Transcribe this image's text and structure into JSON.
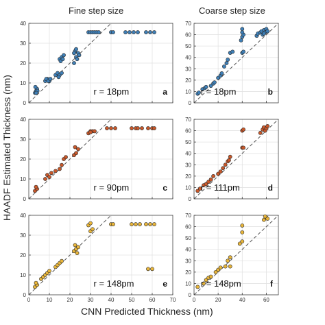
{
  "figure": {
    "col_titles": [
      "Fine step size",
      "Coarse step size"
    ],
    "ylabel": "HAADF Estimated Thickness (nm)",
    "xlabel": "CNN Predicted Thickness (nm)"
  },
  "chart_data": [
    {
      "type": "scatter",
      "panel": "a",
      "annotation": "r = 18pm",
      "xlim": [
        0,
        70
      ],
      "ylim": [
        0,
        40
      ],
      "xticks": [
        0,
        10,
        20,
        30,
        40,
        50,
        60,
        70
      ],
      "yticks": [
        0,
        10,
        20,
        30,
        40
      ],
      "xtick_labels": [],
      "grid": true,
      "reference_line": "y = x",
      "marker_color": "#3f7fb6",
      "points": [
        [
          3,
          5
        ],
        [
          3.5,
          6
        ],
        [
          4,
          7
        ],
        [
          3.2,
          8
        ],
        [
          4.2,
          6
        ],
        [
          3.6,
          5
        ],
        [
          8,
          11
        ],
        [
          9,
          12
        ],
        [
          10,
          11
        ],
        [
          8.5,
          12
        ],
        [
          9.5,
          11
        ],
        [
          10.5,
          12
        ],
        [
          13,
          14
        ],
        [
          14,
          15
        ],
        [
          15,
          14
        ],
        [
          16,
          15
        ],
        [
          14.5,
          13
        ],
        [
          15,
          22
        ],
        [
          16,
          23
        ],
        [
          17,
          24
        ],
        [
          15.5,
          21
        ],
        [
          16.5,
          22
        ],
        [
          22,
          20
        ],
        [
          23,
          23
        ],
        [
          24,
          25
        ],
        [
          22.5,
          26
        ],
        [
          23.5,
          22
        ],
        [
          24.5,
          24
        ],
        [
          22,
          25
        ],
        [
          23,
          27
        ],
        [
          29,
          35.5
        ],
        [
          30,
          35.5
        ],
        [
          31,
          35.5
        ],
        [
          32,
          35.5
        ],
        [
          33,
          35.5
        ],
        [
          34,
          35.5
        ],
        [
          40,
          35.5
        ],
        [
          41,
          35.5
        ],
        [
          47,
          35.5
        ],
        [
          49,
          35.5
        ],
        [
          51,
          35.5
        ],
        [
          53,
          35.5
        ],
        [
          57,
          35.5
        ],
        [
          59,
          35.5
        ],
        [
          61,
          35.5
        ]
      ]
    },
    {
      "type": "scatter",
      "panel": "b",
      "annotation": "r = 18pm",
      "xlim": [
        0,
        70
      ],
      "ylim": [
        0,
        70
      ],
      "xticks": [
        0,
        20,
        40,
        60
      ],
      "yticks": [
        0,
        10,
        20,
        30,
        40,
        50,
        60,
        70
      ],
      "xtick_labels": [],
      "grid": true,
      "reference_line": "y = x",
      "marker_color": "#3f7fb6",
      "points": [
        [
          3,
          8
        ],
        [
          4,
          9
        ],
        [
          7,
          12
        ],
        [
          9,
          13
        ],
        [
          10,
          14
        ],
        [
          14,
          15
        ],
        [
          16,
          17
        ],
        [
          17,
          18
        ],
        [
          20,
          22
        ],
        [
          22,
          24
        ],
        [
          23,
          26
        ],
        [
          25,
          32
        ],
        [
          27,
          35
        ],
        [
          28,
          38
        ],
        [
          30,
          44
        ],
        [
          32,
          45
        ],
        [
          40,
          44
        ],
        [
          41,
          45
        ],
        [
          39,
          55
        ],
        [
          40,
          58
        ],
        [
          41,
          60
        ],
        [
          40,
          62
        ],
        [
          40,
          65
        ],
        [
          52,
          59
        ],
        [
          53,
          61
        ],
        [
          55,
          62
        ],
        [
          56,
          63
        ],
        [
          57,
          60
        ],
        [
          58,
          64
        ],
        [
          59,
          62
        ],
        [
          60,
          65
        ],
        [
          61,
          63
        ],
        [
          58,
          61
        ]
      ]
    },
    {
      "type": "scatter",
      "panel": "c",
      "annotation": "r = 90pm",
      "xlim": [
        0,
        70
      ],
      "ylim": [
        0,
        40
      ],
      "xticks": [
        0,
        10,
        20,
        30,
        40,
        50,
        60,
        70
      ],
      "yticks": [
        0,
        10,
        20,
        30,
        40
      ],
      "xtick_labels": [],
      "grid": true,
      "reference_line": "y = x",
      "marker_color": "#c8582a",
      "points": [
        [
          3,
          4
        ],
        [
          4,
          5
        ],
        [
          3.5,
          6
        ],
        [
          8,
          10
        ],
        [
          9,
          12
        ],
        [
          10,
          11
        ],
        [
          11,
          13
        ],
        [
          13,
          14
        ],
        [
          15,
          15
        ],
        [
          16,
          17
        ],
        [
          17,
          20
        ],
        [
          18,
          21
        ],
        [
          22,
          22
        ],
        [
          23,
          23
        ],
        [
          24,
          25
        ],
        [
          22.5,
          26
        ],
        [
          29,
          33
        ],
        [
          30,
          34
        ],
        [
          31,
          34
        ],
        [
          32,
          34
        ],
        [
          30,
          33.5
        ],
        [
          38,
          35.5
        ],
        [
          40,
          35.5
        ],
        [
          42,
          35.5
        ],
        [
          50,
          35.5
        ],
        [
          52,
          35.5
        ],
        [
          53,
          35.5
        ],
        [
          55,
          35.5
        ],
        [
          58,
          35.5
        ],
        [
          60,
          35.5
        ],
        [
          61,
          35.5
        ]
      ]
    },
    {
      "type": "scatter",
      "panel": "d",
      "annotation": "r = 111pm",
      "xlim": [
        0,
        70
      ],
      "ylim": [
        0,
        70
      ],
      "xticks": [
        0,
        20,
        40,
        60
      ],
      "yticks": [
        0,
        10,
        20,
        30,
        40,
        50,
        60,
        70
      ],
      "xtick_labels": [],
      "grid": true,
      "reference_line": "y = x",
      "marker_color": "#c8582a",
      "points": [
        [
          3,
          7
        ],
        [
          5,
          9
        ],
        [
          8,
          12
        ],
        [
          10,
          13
        ],
        [
          12,
          15
        ],
        [
          14,
          17
        ],
        [
          16,
          20
        ],
        [
          20,
          22
        ],
        [
          22,
          24
        ],
        [
          24,
          27
        ],
        [
          26,
          30
        ],
        [
          28,
          33
        ],
        [
          30,
          37
        ],
        [
          29,
          34
        ],
        [
          40,
          45
        ],
        [
          41,
          45
        ],
        [
          40,
          60
        ],
        [
          41,
          61
        ],
        [
          55,
          58
        ],
        [
          57,
          61
        ],
        [
          58,
          63
        ],
        [
          59,
          60
        ],
        [
          60,
          62
        ],
        [
          61,
          64
        ]
      ]
    },
    {
      "type": "scatter",
      "panel": "e",
      "annotation": "r = 148pm",
      "xlim": [
        0,
        70
      ],
      "ylim": [
        0,
        40
      ],
      "xticks": [
        0,
        10,
        20,
        30,
        40,
        50,
        60,
        70
      ],
      "yticks": [
        0,
        10,
        20,
        30,
        40
      ],
      "xtick_labels": [
        "0",
        "10",
        "20",
        "30",
        "40",
        "50",
        "60",
        "70"
      ],
      "grid": true,
      "reference_line": "y = x",
      "marker_color": "#e8b53a",
      "points": [
        [
          3,
          4
        ],
        [
          4,
          5
        ],
        [
          3.5,
          6
        ],
        [
          6,
          8
        ],
        [
          7,
          9
        ],
        [
          8,
          10
        ],
        [
          9,
          11
        ],
        [
          10,
          12
        ],
        [
          13,
          14
        ],
        [
          14,
          15
        ],
        [
          15,
          16
        ],
        [
          16,
          17
        ],
        [
          22,
          22
        ],
        [
          23,
          23
        ],
        [
          24,
          24
        ],
        [
          22.5,
          25
        ],
        [
          23.5,
          21
        ],
        [
          30,
          32
        ],
        [
          31,
          33
        ],
        [
          29,
          35
        ],
        [
          30,
          36
        ],
        [
          40,
          35.5
        ],
        [
          41,
          35.5
        ],
        [
          50,
          35.5
        ],
        [
          52,
          35.5
        ],
        [
          54,
          35.5
        ],
        [
          57,
          35.5
        ],
        [
          59,
          35.5
        ],
        [
          61,
          35.5
        ],
        [
          58,
          13
        ],
        [
          60,
          13
        ]
      ]
    },
    {
      "type": "scatter",
      "panel": "f",
      "annotation": "r = 148pm",
      "xlim": [
        0,
        70
      ],
      "ylim": [
        0,
        70
      ],
      "xticks": [
        0,
        20,
        40,
        60
      ],
      "yticks": [
        0,
        10,
        20,
        30,
        40,
        50,
        60,
        70
      ],
      "xtick_labels": [
        "0",
        "20",
        "40",
        "60"
      ],
      "grid": true,
      "reference_line": "y = x",
      "marker_color": "#e8b53a",
      "points": [
        [
          3,
          7
        ],
        [
          8,
          10
        ],
        [
          10,
          13
        ],
        [
          12,
          15
        ],
        [
          14,
          16
        ],
        [
          18,
          20
        ],
        [
          20,
          22
        ],
        [
          22,
          24
        ],
        [
          26,
          25
        ],
        [
          30,
          25
        ],
        [
          28,
          30
        ],
        [
          30,
          33
        ],
        [
          38,
          45
        ],
        [
          40,
          47
        ],
        [
          40,
          55
        ],
        [
          40,
          61
        ],
        [
          58,
          66
        ],
        [
          60,
          68
        ],
        [
          61,
          67
        ],
        [
          59,
          69
        ]
      ]
    }
  ]
}
